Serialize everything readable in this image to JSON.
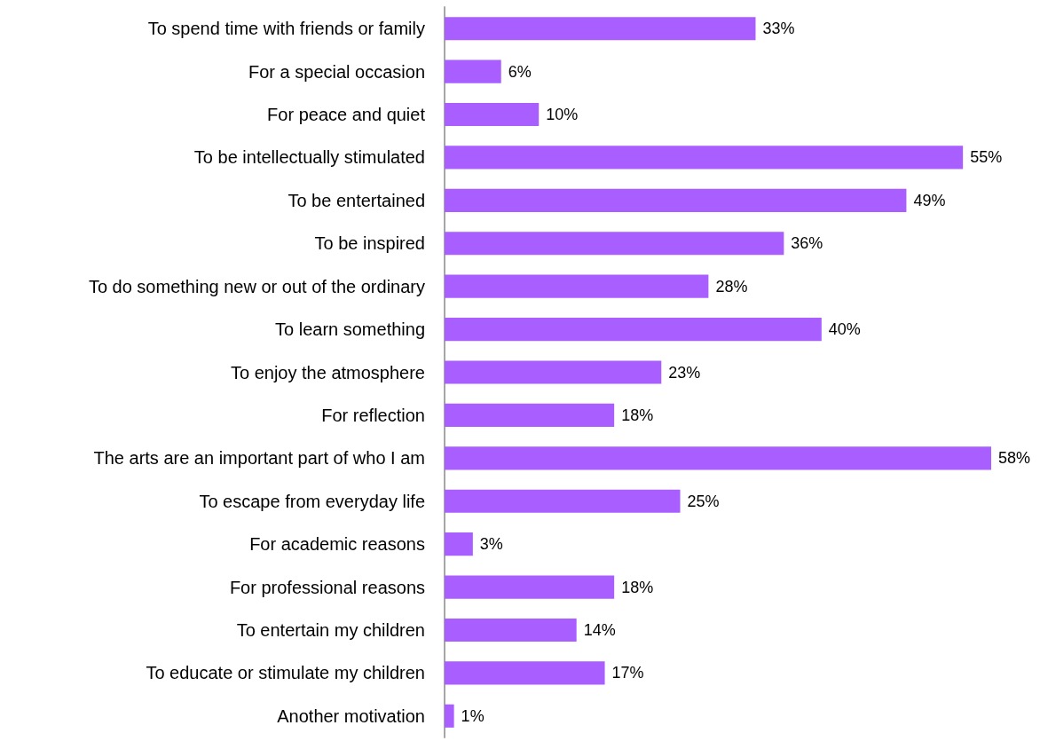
{
  "chart_data": {
    "type": "bar",
    "orientation": "horizontal",
    "categories": [
      "To spend time with friends or family",
      "For a special occasion",
      "For peace and quiet",
      "To be intellectually stimulated",
      "To be entertained",
      "To be inspired",
      "To do something new or out of the ordinary",
      "To learn something",
      "To enjoy the atmosphere",
      "For reflection",
      "The arts are an important part of who I am",
      "To escape from everyday life",
      "For academic reasons",
      "For professional reasons",
      "To entertain my children",
      "To educate or stimulate my children",
      "Another motivation"
    ],
    "values": [
      33,
      6,
      10,
      55,
      49,
      36,
      28,
      40,
      23,
      18,
      58,
      25,
      3,
      18,
      14,
      17,
      1
    ],
    "value_labels": [
      "33%",
      "6%",
      "10%",
      "55%",
      "49%",
      "36%",
      "28%",
      "40%",
      "23%",
      "18%",
      "58%",
      "25%",
      "3%",
      "18%",
      "14%",
      "17%",
      "1%"
    ],
    "color": "#a95eff"
  }
}
